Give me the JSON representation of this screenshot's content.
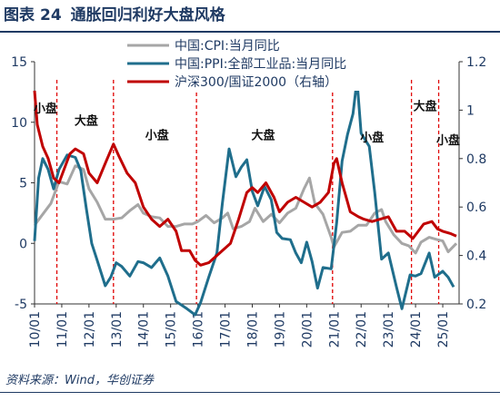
{
  "figure": {
    "label": "图表",
    "number": "24",
    "title": "通胀回归利好大盘风格",
    "source": "资料来源：Wind，华创证券"
  },
  "chart_data": {
    "type": "line",
    "grid": false,
    "legend_position": "top-center",
    "x_ticks": [
      "10/01",
      "11/01",
      "12/01",
      "13/01",
      "14/01",
      "15/01",
      "16/01",
      "17/01",
      "18/01",
      "19/01",
      "20/01",
      "21/01",
      "22/01",
      "23/01",
      "24/01",
      "25/01"
    ],
    "x_range": [
      2010.0,
      2025.6
    ],
    "y_left": {
      "range": [
        -5,
        15
      ],
      "ticks": [
        -5,
        0,
        5,
        10,
        15
      ]
    },
    "y_right": {
      "range": [
        0.2,
        1.2
      ],
      "ticks": [
        "0.2",
        "0.4",
        "0.6",
        "0.8",
        "1",
        "1.2"
      ]
    },
    "series": [
      {
        "name": "中国:CPI:当月同比",
        "axis": "left",
        "color": "#a6a6a6",
        "points": [
          [
            2010.0,
            1.5
          ],
          [
            2010.3,
            2.4
          ],
          [
            2010.6,
            3.3
          ],
          [
            2010.9,
            5.1
          ],
          [
            2011.2,
            4.9
          ],
          [
            2011.5,
            6.4
          ],
          [
            2011.8,
            6.1
          ],
          [
            2012.0,
            4.5
          ],
          [
            2012.3,
            3.4
          ],
          [
            2012.6,
            2.0
          ],
          [
            2012.9,
            2.0
          ],
          [
            2013.2,
            2.1
          ],
          [
            2013.5,
            2.7
          ],
          [
            2013.8,
            3.2
          ],
          [
            2014.0,
            2.5
          ],
          [
            2014.3,
            2.2
          ],
          [
            2014.6,
            2.1
          ],
          [
            2014.9,
            1.4
          ],
          [
            2015.2,
            1.4
          ],
          [
            2015.5,
            1.6
          ],
          [
            2015.8,
            1.6
          ],
          [
            2016.0,
            1.8
          ],
          [
            2016.3,
            2.3
          ],
          [
            2016.6,
            1.7
          ],
          [
            2016.9,
            2.1
          ],
          [
            2017.1,
            2.5
          ],
          [
            2017.3,
            1.2
          ],
          [
            2017.6,
            1.4
          ],
          [
            2017.9,
            1.8
          ],
          [
            2018.1,
            2.9
          ],
          [
            2018.4,
            1.8
          ],
          [
            2018.7,
            2.4
          ],
          [
            2019.0,
            1.7
          ],
          [
            2019.3,
            2.5
          ],
          [
            2019.6,
            2.9
          ],
          [
            2019.9,
            4.5
          ],
          [
            2020.1,
            5.4
          ],
          [
            2020.3,
            3.3
          ],
          [
            2020.6,
            2.4
          ],
          [
            2020.9,
            0.5
          ],
          [
            2021.0,
            -0.3
          ],
          [
            2021.3,
            0.9
          ],
          [
            2021.6,
            1.0
          ],
          [
            2021.9,
            1.5
          ],
          [
            2022.2,
            1.5
          ],
          [
            2022.5,
            2.5
          ],
          [
            2022.75,
            2.8
          ],
          [
            2022.9,
            1.8
          ],
          [
            2023.2,
            0.7
          ],
          [
            2023.5,
            0.0
          ],
          [
            2023.75,
            -0.2
          ],
          [
            2024.0,
            -0.8
          ],
          [
            2024.2,
            0.1
          ],
          [
            2024.5,
            0.5
          ],
          [
            2024.8,
            0.3
          ],
          [
            2025.0,
            0.2
          ],
          [
            2025.2,
            -0.7
          ],
          [
            2025.5,
            0.0
          ]
        ]
      },
      {
        "name": "中国:PPI:全部工业品:当月同比",
        "axis": "left",
        "color": "#1f6e8c",
        "points": [
          [
            2010.0,
            0.2
          ],
          [
            2010.15,
            5.4
          ],
          [
            2010.3,
            7.0
          ],
          [
            2010.5,
            6.1
          ],
          [
            2010.7,
            4.5
          ],
          [
            2010.9,
            6.1
          ],
          [
            2011.2,
            7.3
          ],
          [
            2011.5,
            7.1
          ],
          [
            2011.7,
            6.0
          ],
          [
            2011.9,
            2.9
          ],
          [
            2012.1,
            0.0
          ],
          [
            2012.3,
            -1.4
          ],
          [
            2012.6,
            -3.5
          ],
          [
            2012.8,
            -2.8
          ],
          [
            2013.0,
            -1.6
          ],
          [
            2013.2,
            -1.9
          ],
          [
            2013.5,
            -2.7
          ],
          [
            2013.8,
            -1.5
          ],
          [
            2014.0,
            -1.6
          ],
          [
            2014.3,
            -2.0
          ],
          [
            2014.6,
            -1.2
          ],
          [
            2014.9,
            -2.7
          ],
          [
            2015.2,
            -4.8
          ],
          [
            2015.6,
            -5.4
          ],
          [
            2015.9,
            -5.9
          ],
          [
            2016.1,
            -4.9
          ],
          [
            2016.4,
            -2.8
          ],
          [
            2016.7,
            -0.8
          ],
          [
            2016.9,
            3.3
          ],
          [
            2017.15,
            7.8
          ],
          [
            2017.4,
            5.5
          ],
          [
            2017.6,
            6.3
          ],
          [
            2017.8,
            6.9
          ],
          [
            2018.0,
            4.3
          ],
          [
            2018.2,
            3.1
          ],
          [
            2018.45,
            4.7
          ],
          [
            2018.7,
            3.6
          ],
          [
            2018.9,
            0.9
          ],
          [
            2019.1,
            0.4
          ],
          [
            2019.4,
            0.3
          ],
          [
            2019.6,
            -0.8
          ],
          [
            2019.8,
            -1.6
          ],
          [
            2020.0,
            0.1
          ],
          [
            2020.2,
            -1.5
          ],
          [
            2020.4,
            -3.7
          ],
          [
            2020.6,
            -2.0
          ],
          [
            2020.9,
            -2.1
          ],
          [
            2021.1,
            1.7
          ],
          [
            2021.3,
            6.8
          ],
          [
            2021.5,
            9.0
          ],
          [
            2021.7,
            10.7
          ],
          [
            2021.85,
            13.5
          ],
          [
            2022.0,
            9.1
          ],
          [
            2022.3,
            8.0
          ],
          [
            2022.5,
            4.2
          ],
          [
            2022.75,
            -1.3
          ],
          [
            2023.0,
            -0.8
          ],
          [
            2023.3,
            -3.6
          ],
          [
            2023.5,
            -5.4
          ],
          [
            2023.8,
            -2.6
          ],
          [
            2024.0,
            -2.7
          ],
          [
            2024.2,
            -2.5
          ],
          [
            2024.5,
            -0.8
          ],
          [
            2024.7,
            -2.8
          ],
          [
            2025.0,
            -2.3
          ],
          [
            2025.2,
            -2.8
          ],
          [
            2025.4,
            -3.6
          ]
        ]
      },
      {
        "name": "沪深300/国证2000（右轴）",
        "axis": "right",
        "color": "#c00000",
        "points": [
          [
            2010.0,
            1.08
          ],
          [
            2010.1,
            0.94
          ],
          [
            2010.3,
            0.85
          ],
          [
            2010.5,
            0.8
          ],
          [
            2010.7,
            0.72
          ],
          [
            2010.9,
            0.7
          ],
          [
            2011.1,
            0.76
          ],
          [
            2011.3,
            0.82
          ],
          [
            2011.5,
            0.84
          ],
          [
            2011.8,
            0.82
          ],
          [
            2012.0,
            0.74
          ],
          [
            2012.3,
            0.7
          ],
          [
            2012.6,
            0.78
          ],
          [
            2012.9,
            0.86
          ],
          [
            2013.1,
            0.81
          ],
          [
            2013.4,
            0.74
          ],
          [
            2013.7,
            0.7
          ],
          [
            2014.0,
            0.6
          ],
          [
            2014.3,
            0.55
          ],
          [
            2014.6,
            0.52
          ],
          [
            2014.9,
            0.55
          ],
          [
            2015.2,
            0.5
          ],
          [
            2015.4,
            0.42
          ],
          [
            2015.7,
            0.42
          ],
          [
            2015.9,
            0.38
          ],
          [
            2016.1,
            0.36
          ],
          [
            2016.4,
            0.37
          ],
          [
            2016.7,
            0.4
          ],
          [
            2016.9,
            0.42
          ],
          [
            2017.2,
            0.45
          ],
          [
            2017.5,
            0.55
          ],
          [
            2017.8,
            0.66
          ],
          [
            2018.0,
            0.68
          ],
          [
            2018.2,
            0.66
          ],
          [
            2018.5,
            0.7
          ],
          [
            2018.8,
            0.64
          ],
          [
            2019.0,
            0.58
          ],
          [
            2019.3,
            0.62
          ],
          [
            2019.6,
            0.64
          ],
          [
            2019.9,
            0.62
          ],
          [
            2020.2,
            0.6
          ],
          [
            2020.5,
            0.62
          ],
          [
            2020.8,
            0.66
          ],
          [
            2021.0,
            0.78
          ],
          [
            2021.1,
            0.8
          ],
          [
            2021.3,
            0.7
          ],
          [
            2021.6,
            0.58
          ],
          [
            2021.9,
            0.56
          ],
          [
            2022.1,
            0.55
          ],
          [
            2022.4,
            0.54
          ],
          [
            2022.7,
            0.55
          ],
          [
            2023.0,
            0.56
          ],
          [
            2023.3,
            0.5
          ],
          [
            2023.6,
            0.5
          ],
          [
            2023.9,
            0.47
          ],
          [
            2024.1,
            0.5
          ],
          [
            2024.3,
            0.53
          ],
          [
            2024.6,
            0.54
          ],
          [
            2024.8,
            0.51
          ],
          [
            2025.0,
            0.5
          ],
          [
            2025.3,
            0.49
          ],
          [
            2025.5,
            0.48
          ]
        ]
      }
    ],
    "regime_dividers": [
      2010.82,
      2012.9,
      2015.95,
      2020.95,
      2023.85,
      2024.85
    ],
    "annotations": [
      {
        "text": "小盘",
        "x": 2010.4,
        "y": 10.8
      },
      {
        "text": "大盘",
        "x": 2011.9,
        "y": 9.8
      },
      {
        "text": "小盘",
        "x": 2014.5,
        "y": 8.6
      },
      {
        "text": "大盘",
        "x": 2018.4,
        "y": 8.6
      },
      {
        "text": "小盘",
        "x": 2022.4,
        "y": 8.4
      },
      {
        "text": "大盘",
        "x": 2024.35,
        "y": 11.0
      },
      {
        "text": "小盘",
        "x": 2025.2,
        "y": 8.2
      }
    ]
  }
}
